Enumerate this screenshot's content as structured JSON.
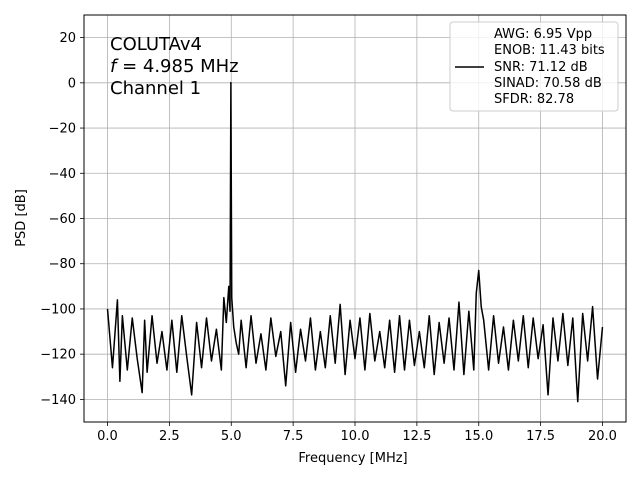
{
  "chart_data": {
    "type": "line",
    "title": "",
    "xlabel": "Frequency [MHz]",
    "ylabel": "PSD [dB]",
    "xlim": [
      -0.95,
      20.95
    ],
    "ylim": [
      -150,
      30
    ],
    "grid": true,
    "x_ticks": [
      0.0,
      2.5,
      5.0,
      7.5,
      10.0,
      12.5,
      15.0,
      17.5,
      20.0
    ],
    "x_tick_labels": [
      "0.0",
      "2.5",
      "5.0",
      "7.5",
      "10.0",
      "12.5",
      "15.0",
      "17.5",
      "20.0"
    ],
    "y_ticks": [
      20,
      0,
      -20,
      -40,
      -60,
      -80,
      -100,
      -120,
      -140
    ],
    "y_tick_labels": [
      "20",
      "0",
      "−20",
      "−40",
      "−60",
      "−80",
      "−100",
      "−120",
      "−140"
    ],
    "annotation": {
      "line1": "COLUTAv4",
      "line2_var": "f",
      "line2_rest": " = 4.985 MHz",
      "line3": "Channel 1"
    },
    "legend_position": "upper right",
    "legend_lines": [
      "AWG: 6.95 Vpp",
      "ENOB: 11.43 bits",
      "SNR: 71.12 dB",
      "SINAD: 70.58 dB",
      "SFDR: 82.78"
    ],
    "series_color": "#000000",
    "series": [
      {
        "name": "AWG: 6.95 Vpp ENOB: 11.43 bits SNR: 71.12 dB SINAD: 70.58 dB SFDR: 82.78",
        "fundamental": {
          "x": 4.985,
          "y": 0
        },
        "x": [
          0.0,
          0.2,
          0.4,
          0.5,
          0.6,
          0.8,
          1.0,
          1.2,
          1.4,
          1.5,
          1.6,
          1.8,
          2.0,
          2.2,
          2.4,
          2.6,
          2.8,
          3.0,
          3.2,
          3.4,
          3.6,
          3.8,
          4.0,
          4.2,
          4.4,
          4.6,
          4.7,
          4.8,
          4.9,
          4.95,
          4.985,
          5.02,
          5.1,
          5.2,
          5.3,
          5.4,
          5.6,
          5.8,
          6.0,
          6.2,
          6.4,
          6.6,
          6.8,
          7.0,
          7.2,
          7.4,
          7.6,
          7.8,
          8.0,
          8.2,
          8.4,
          8.6,
          8.8,
          9.0,
          9.2,
          9.4,
          9.6,
          9.8,
          10.0,
          10.2,
          10.4,
          10.6,
          10.8,
          11.0,
          11.2,
          11.4,
          11.6,
          11.8,
          12.0,
          12.2,
          12.4,
          12.6,
          12.8,
          13.0,
          13.2,
          13.4,
          13.6,
          13.8,
          14.0,
          14.2,
          14.4,
          14.6,
          14.8,
          14.9,
          15.0,
          15.1,
          15.2,
          15.4,
          15.6,
          15.8,
          16.0,
          16.2,
          16.4,
          16.6,
          16.8,
          17.0,
          17.2,
          17.4,
          17.6,
          17.8,
          18.0,
          18.2,
          18.4,
          18.6,
          18.8,
          19.0,
          19.2,
          19.4,
          19.6,
          19.8,
          20.0
        ],
        "y": [
          -100,
          -126,
          -96,
          -132,
          -103,
          -127,
          -104,
          -122,
          -137,
          -105,
          -128,
          -103,
          -124,
          -110,
          -127,
          -105,
          -128,
          -103,
          -121,
          -138,
          -106,
          -126,
          -104,
          -123,
          -109,
          -127,
          -95,
          -106,
          -90,
          -101,
          0,
          -95,
          -108,
          -115,
          -120,
          -105,
          -126,
          -103,
          -124,
          -111,
          -127,
          -104,
          -121,
          -110,
          -134,
          -106,
          -128,
          -109,
          -123,
          -104,
          -127,
          -110,
          -126,
          -103,
          -124,
          -98,
          -129,
          -105,
          -122,
          -104,
          -127,
          -102,
          -123,
          -110,
          -126,
          -105,
          -128,
          -103,
          -127,
          -105,
          -125,
          -110,
          -126,
          -103,
          -129,
          -106,
          -124,
          -104,
          -127,
          -97,
          -129,
          -101,
          -127,
          -93,
          -83,
          -99,
          -105,
          -127,
          -103,
          -124,
          -108,
          -127,
          -105,
          -123,
          -103,
          -126,
          -104,
          -122,
          -107,
          -138,
          -104,
          -123,
          -102,
          -125,
          -104,
          -141,
          -102,
          -123,
          -99,
          -131,
          -108
        ]
      }
    ]
  }
}
